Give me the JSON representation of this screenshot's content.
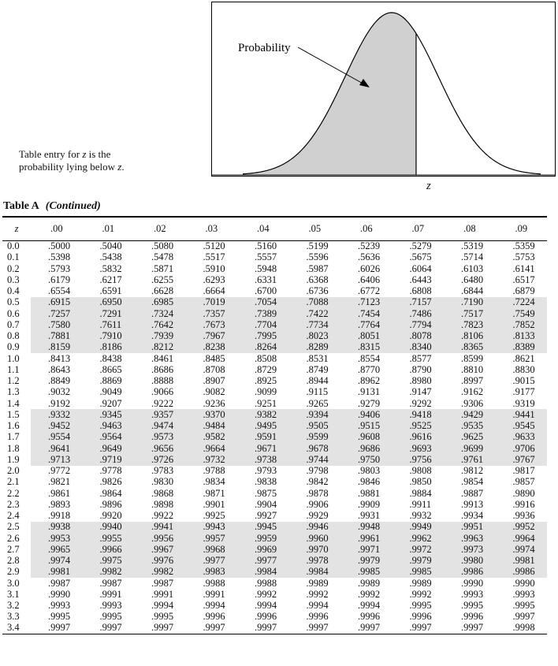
{
  "figure": {
    "probability_label": "Probability",
    "z_label": "z",
    "shaded_fraction": 0.7
  },
  "caption": {
    "line1_a": "Table entry for ",
    "line1_z": "z",
    "line1_b": " is the",
    "line2_a": "probability lying below ",
    "line2_z": "z",
    "line2_b": "."
  },
  "table": {
    "title": "Table A",
    "subtitle": "(Continued)",
    "headers": [
      "z",
      ".00",
      ".01",
      ".02",
      ".03",
      ".04",
      ".05",
      ".06",
      ".07",
      ".08",
      ".09"
    ],
    "rows": [
      {
        "z": "0.0",
        "v": [
          ".5000",
          ".5040",
          ".5080",
          ".5120",
          ".5160",
          ".5199",
          ".5239",
          ".5279",
          ".5319",
          ".5359"
        ]
      },
      {
        "z": "0.1",
        "v": [
          ".5398",
          ".5438",
          ".5478",
          ".5517",
          ".5557",
          ".5596",
          ".5636",
          ".5675",
          ".5714",
          ".5753"
        ]
      },
      {
        "z": "0.2",
        "v": [
          ".5793",
          ".5832",
          ".5871",
          ".5910",
          ".5948",
          ".5987",
          ".6026",
          ".6064",
          ".6103",
          ".6141"
        ]
      },
      {
        "z": "0.3",
        "v": [
          ".6179",
          ".6217",
          ".6255",
          ".6293",
          ".6331",
          ".6368",
          ".6406",
          ".6443",
          ".6480",
          ".6517"
        ]
      },
      {
        "z": "0.4",
        "v": [
          ".6554",
          ".6591",
          ".6628",
          ".6664",
          ".6700",
          ".6736",
          ".6772",
          ".6808",
          ".6844",
          ".6879"
        ]
      },
      {
        "z": "0.5",
        "v": [
          ".6915",
          ".6950",
          ".6985",
          ".7019",
          ".7054",
          ".7088",
          ".7123",
          ".7157",
          ".7190",
          ".7224"
        ]
      },
      {
        "z": "0.6",
        "v": [
          ".7257",
          ".7291",
          ".7324",
          ".7357",
          ".7389",
          ".7422",
          ".7454",
          ".7486",
          ".7517",
          ".7549"
        ]
      },
      {
        "z": "0.7",
        "v": [
          ".7580",
          ".7611",
          ".7642",
          ".7673",
          ".7704",
          ".7734",
          ".7764",
          ".7794",
          ".7823",
          ".7852"
        ]
      },
      {
        "z": "0.8",
        "v": [
          ".7881",
          ".7910",
          ".7939",
          ".7967",
          ".7995",
          ".8023",
          ".8051",
          ".8078",
          ".8106",
          ".8133"
        ]
      },
      {
        "z": "0.9",
        "v": [
          ".8159",
          ".8186",
          ".8212",
          ".8238",
          ".8264",
          ".8289",
          ".8315",
          ".8340",
          ".8365",
          ".8389"
        ]
      },
      {
        "z": "1.0",
        "v": [
          ".8413",
          ".8438",
          ".8461",
          ".8485",
          ".8508",
          ".8531",
          ".8554",
          ".8577",
          ".8599",
          ".8621"
        ]
      },
      {
        "z": "1.1",
        "v": [
          ".8643",
          ".8665",
          ".8686",
          ".8708",
          ".8729",
          ".8749",
          ".8770",
          ".8790",
          ".8810",
          ".8830"
        ]
      },
      {
        "z": "1.2",
        "v": [
          ".8849",
          ".8869",
          ".8888",
          ".8907",
          ".8925",
          ".8944",
          ".8962",
          ".8980",
          ".8997",
          ".9015"
        ]
      },
      {
        "z": "1.3",
        "v": [
          ".9032",
          ".9049",
          ".9066",
          ".9082",
          ".9099",
          ".9115",
          ".9131",
          ".9147",
          ".9162",
          ".9177"
        ]
      },
      {
        "z": "1.4",
        "v": [
          ".9192",
          ".9207",
          ".9222",
          ".9236",
          ".9251",
          ".9265",
          ".9279",
          ".9292",
          ".9306",
          ".9319"
        ]
      },
      {
        "z": "1.5",
        "v": [
          ".9332",
          ".9345",
          ".9357",
          ".9370",
          ".9382",
          ".9394",
          ".9406",
          ".9418",
          ".9429",
          ".9441"
        ]
      },
      {
        "z": "1.6",
        "v": [
          ".9452",
          ".9463",
          ".9474",
          ".9484",
          ".9495",
          ".9505",
          ".9515",
          ".9525",
          ".9535",
          ".9545"
        ]
      },
      {
        "z": "1.7",
        "v": [
          ".9554",
          ".9564",
          ".9573",
          ".9582",
          ".9591",
          ".9599",
          ".9608",
          ".9616",
          ".9625",
          ".9633"
        ]
      },
      {
        "z": "1.8",
        "v": [
          ".9641",
          ".9649",
          ".9656",
          ".9664",
          ".9671",
          ".9678",
          ".9686",
          ".9693",
          ".9699",
          ".9706"
        ]
      },
      {
        "z": "1.9",
        "v": [
          ".9713",
          ".9719",
          ".9726",
          ".9732",
          ".9738",
          ".9744",
          ".9750",
          ".9756",
          ".9761",
          ".9767"
        ]
      },
      {
        "z": "2.0",
        "v": [
          ".9772",
          ".9778",
          ".9783",
          ".9788",
          ".9793",
          ".9798",
          ".9803",
          ".9808",
          ".9812",
          ".9817"
        ]
      },
      {
        "z": "2.1",
        "v": [
          ".9821",
          ".9826",
          ".9830",
          ".9834",
          ".9838",
          ".9842",
          ".9846",
          ".9850",
          ".9854",
          ".9857"
        ]
      },
      {
        "z": "2.2",
        "v": [
          ".9861",
          ".9864",
          ".9868",
          ".9871",
          ".9875",
          ".9878",
          ".9881",
          ".9884",
          ".9887",
          ".9890"
        ]
      },
      {
        "z": "2.3",
        "v": [
          ".9893",
          ".9896",
          ".9898",
          ".9901",
          ".9904",
          ".9906",
          ".9909",
          ".9911",
          ".9913",
          ".9916"
        ]
      },
      {
        "z": "2.4",
        "v": [
          ".9918",
          ".9920",
          ".9922",
          ".9925",
          ".9927",
          ".9929",
          ".9931",
          ".9932",
          ".9934",
          ".9936"
        ]
      },
      {
        "z": "2.5",
        "v": [
          ".9938",
          ".9940",
          ".9941",
          ".9943",
          ".9945",
          ".9946",
          ".9948",
          ".9949",
          ".9951",
          ".9952"
        ]
      },
      {
        "z": "2.6",
        "v": [
          ".9953",
          ".9955",
          ".9956",
          ".9957",
          ".9959",
          ".9960",
          ".9961",
          ".9962",
          ".9963",
          ".9964"
        ]
      },
      {
        "z": "2.7",
        "v": [
          ".9965",
          ".9966",
          ".9967",
          ".9968",
          ".9969",
          ".9970",
          ".9971",
          ".9972",
          ".9973",
          ".9974"
        ]
      },
      {
        "z": "2.8",
        "v": [
          ".9974",
          ".9975",
          ".9976",
          ".9977",
          ".9977",
          ".9978",
          ".9979",
          ".9979",
          ".9980",
          ".9981"
        ]
      },
      {
        "z": "2.9",
        "v": [
          ".9981",
          ".9982",
          ".9982",
          ".9983",
          ".9984",
          ".9984",
          ".9985",
          ".9985",
          ".9986",
          ".9986"
        ]
      },
      {
        "z": "3.0",
        "v": [
          ".9987",
          ".9987",
          ".9987",
          ".9988",
          ".9988",
          ".9989",
          ".9989",
          ".9989",
          ".9990",
          ".9990"
        ]
      },
      {
        "z": "3.1",
        "v": [
          ".9990",
          ".9991",
          ".9991",
          ".9991",
          ".9992",
          ".9992",
          ".9992",
          ".9992",
          ".9993",
          ".9993"
        ]
      },
      {
        "z": "3.2",
        "v": [
          ".9993",
          ".9993",
          ".9994",
          ".9994",
          ".9994",
          ".9994",
          ".9994",
          ".9995",
          ".9995",
          ".9995"
        ]
      },
      {
        "z": "3.3",
        "v": [
          ".9995",
          ".9995",
          ".9995",
          ".9996",
          ".9996",
          ".9996",
          ".9996",
          ".9996",
          ".9996",
          ".9997"
        ]
      },
      {
        "z": "3.4",
        "v": [
          ".9997",
          ".9997",
          ".9997",
          ".9997",
          ".9997",
          ".9997",
          ".9997",
          ".9997",
          ".9997",
          ".9998"
        ]
      }
    ],
    "shaded_groups": [
      "0.5-0.9",
      "1.5-1.9",
      "2.5-2.9"
    ]
  }
}
